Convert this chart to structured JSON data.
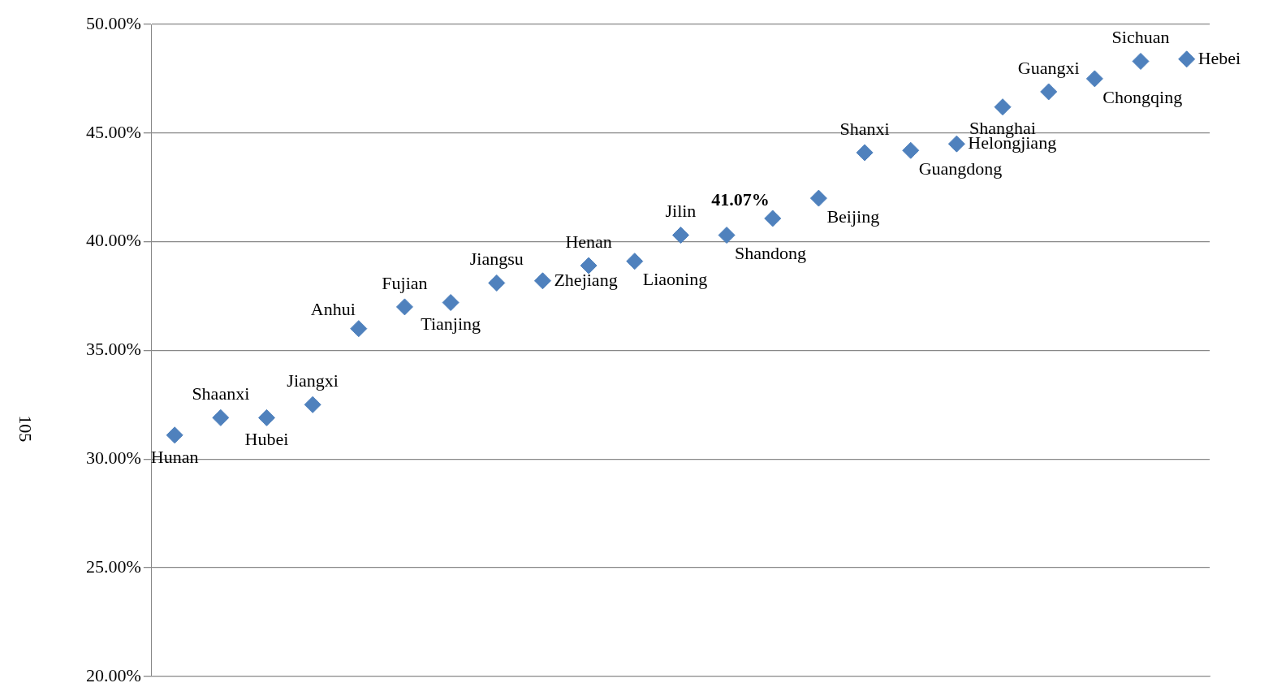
{
  "chart_data": {
    "type": "scatter",
    "categories": [
      null,
      null,
      null,
      null,
      null,
      null,
      null,
      null,
      null,
      null,
      null,
      null,
      null,
      null,
      null,
      null,
      null,
      null,
      null,
      null,
      null,
      null,
      null
    ],
    "series": [
      {
        "name": "Hunan",
        "color": "#4f81bd",
        "values": [
          31.1,
          null,
          null,
          null,
          null,
          null,
          null,
          null,
          null,
          null,
          null,
          null,
          null,
          null,
          null,
          null,
          null,
          null,
          null,
          null,
          null,
          null,
          null
        ]
      },
      {
        "name": "Shaanxi",
        "color": "#4f81bd",
        "values": [
          null,
          31.9,
          null,
          null,
          null,
          null,
          null,
          null,
          null,
          null,
          null,
          null,
          null,
          null,
          null,
          null,
          null,
          null,
          null,
          null,
          null,
          null,
          null
        ]
      },
      {
        "name": "Hubei",
        "color": "#4f81bd",
        "values": [
          null,
          null,
          31.9,
          null,
          null,
          null,
          null,
          null,
          null,
          null,
          null,
          null,
          null,
          null,
          null,
          null,
          null,
          null,
          null,
          null,
          null,
          null,
          null
        ]
      },
      {
        "name": "Jiangxi",
        "color": "#4f81bd",
        "values": [
          null,
          null,
          null,
          32.5,
          null,
          null,
          null,
          null,
          null,
          null,
          null,
          null,
          null,
          null,
          null,
          null,
          null,
          null,
          null,
          null,
          null,
          null,
          null
        ]
      },
      {
        "name": "Anhui",
        "color": "#4f81bd",
        "values": [
          null,
          null,
          null,
          null,
          36.0,
          null,
          null,
          null,
          null,
          null,
          null,
          null,
          null,
          null,
          null,
          null,
          null,
          null,
          null,
          null,
          null,
          null,
          null
        ]
      },
      {
        "name": "Fujian",
        "color": "#4f81bd",
        "values": [
          null,
          null,
          null,
          null,
          null,
          37.0,
          null,
          null,
          null,
          null,
          null,
          null,
          null,
          null,
          null,
          null,
          null,
          null,
          null,
          null,
          null,
          null,
          null
        ]
      },
      {
        "name": "Tianjing",
        "color": "#4f81bd",
        "values": [
          null,
          null,
          null,
          null,
          null,
          null,
          37.2,
          null,
          null,
          null,
          null,
          null,
          null,
          null,
          null,
          null,
          null,
          null,
          null,
          null,
          null,
          null,
          null
        ]
      },
      {
        "name": "Jiangsu",
        "color": "#4f81bd",
        "values": [
          null,
          null,
          null,
          null,
          null,
          null,
          null,
          38.1,
          null,
          null,
          null,
          null,
          null,
          null,
          null,
          null,
          null,
          null,
          null,
          null,
          null,
          null,
          null
        ]
      },
      {
        "name": "Zhejiang",
        "color": "#4f81bd",
        "values": [
          null,
          null,
          null,
          null,
          null,
          null,
          null,
          null,
          38.2,
          null,
          null,
          null,
          null,
          null,
          null,
          null,
          null,
          null,
          null,
          null,
          null,
          null,
          null
        ]
      },
      {
        "name": "Henan",
        "color": "#4f81bd",
        "values": [
          null,
          null,
          null,
          null,
          null,
          null,
          null,
          null,
          null,
          38.9,
          null,
          null,
          null,
          null,
          null,
          null,
          null,
          null,
          null,
          null,
          null,
          null,
          null
        ]
      },
      {
        "name": "Liaoning",
        "color": "#4f81bd",
        "values": [
          null,
          null,
          null,
          null,
          null,
          null,
          null,
          null,
          null,
          null,
          39.1,
          null,
          null,
          null,
          null,
          null,
          null,
          null,
          null,
          null,
          null,
          null,
          null
        ]
      },
      {
        "name": "Jilin",
        "color": "#4f81bd",
        "values": [
          null,
          null,
          null,
          null,
          null,
          null,
          null,
          null,
          null,
          null,
          null,
          40.3,
          null,
          null,
          null,
          null,
          null,
          null,
          null,
          null,
          null,
          null,
          null
        ]
      },
      {
        "name": "Shandong",
        "color": "#4f81bd",
        "values": [
          null,
          null,
          null,
          null,
          null,
          null,
          null,
          null,
          null,
          null,
          null,
          null,
          40.3,
          null,
          null,
          null,
          null,
          null,
          null,
          null,
          null,
          null,
          null
        ]
      },
      {
        "color": "#4f81bd",
        "values": [
          null,
          null,
          null,
          null,
          null,
          null,
          null,
          null,
          null,
          null,
          null,
          null,
          null,
          41.07,
          null,
          null,
          null,
          null,
          null,
          null,
          null,
          null,
          null
        ],
        "value_labels": [
          null,
          null,
          null,
          null,
          null,
          null,
          null,
          null,
          null,
          null,
          null,
          null,
          null,
          "41.07%",
          null,
          null,
          null,
          null,
          null,
          null,
          null,
          null,
          null
        ]
      },
      {
        "name": "Beijing",
        "color": "#4f81bd",
        "values": [
          null,
          null,
          null,
          null,
          null,
          null,
          null,
          null,
          null,
          null,
          null,
          null,
          null,
          null,
          42.0,
          null,
          null,
          null,
          null,
          null,
          null,
          null,
          null
        ]
      },
      {
        "name": "Shanxi",
        "color": "#4f81bd",
        "values": [
          null,
          null,
          null,
          null,
          null,
          null,
          null,
          null,
          null,
          null,
          null,
          null,
          null,
          null,
          null,
          44.1,
          null,
          null,
          null,
          null,
          null,
          null,
          null
        ]
      },
      {
        "name": "Guangdong",
        "color": "#4f81bd",
        "values": [
          null,
          null,
          null,
          null,
          null,
          null,
          null,
          null,
          null,
          null,
          null,
          null,
          null,
          null,
          null,
          null,
          44.2,
          null,
          null,
          null,
          null,
          null,
          null
        ]
      },
      {
        "name": "Helongjiang",
        "color": "#4f81bd",
        "values": [
          null,
          null,
          null,
          null,
          null,
          null,
          null,
          null,
          null,
          null,
          null,
          null,
          null,
          null,
          null,
          null,
          null,
          44.5,
          null,
          null,
          null,
          null,
          null
        ]
      },
      {
        "name": "Shanghai",
        "color": "#4f81bd",
        "values": [
          null,
          null,
          null,
          null,
          null,
          null,
          null,
          null,
          null,
          null,
          null,
          null,
          null,
          null,
          null,
          null,
          null,
          null,
          46.2,
          null,
          null,
          null,
          null
        ]
      },
      {
        "name": "Guangxi",
        "color": "#4f81bd",
        "values": [
          null,
          null,
          null,
          null,
          null,
          null,
          null,
          null,
          null,
          null,
          null,
          null,
          null,
          null,
          null,
          null,
          null,
          null,
          null,
          46.9,
          null,
          null,
          null
        ]
      },
      {
        "name": "Chongqing",
        "color": "#4f81bd",
        "values": [
          null,
          null,
          null,
          null,
          null,
          null,
          null,
          null,
          null,
          null,
          null,
          null,
          null,
          null,
          null,
          null,
          null,
          null,
          null,
          null,
          47.5,
          null,
          null
        ]
      },
      {
        "name": "Sichuan",
        "color": "#4f81bd",
        "values": [
          null,
          null,
          null,
          null,
          null,
          null,
          null,
          null,
          null,
          null,
          null,
          null,
          null,
          null,
          null,
          null,
          null,
          null,
          null,
          null,
          null,
          48.3,
          null
        ]
      },
      {
        "name": "Hebei",
        "color": "#4f81bd",
        "values": [
          null,
          null,
          null,
          null,
          null,
          null,
          null,
          null,
          null,
          null,
          null,
          null,
          null,
          null,
          null,
          null,
          null,
          null,
          null,
          null,
          null,
          null,
          48.4
        ]
      }
    ],
    "marker": "diamond",
    "grid": "y",
    "tick_labels": "y",
    "ylim": [
      20,
      50
    ],
    "yticks": [
      {
        "value": 20,
        "label": "20.00%"
      },
      {
        "value": 25,
        "label": "25.00%"
      },
      {
        "value": 30,
        "label": "30.00%"
      },
      {
        "value": 35,
        "label": "35.00%"
      },
      {
        "value": 40,
        "label": "40.00%"
      },
      {
        "value": 45,
        "label": "45.00%"
      },
      {
        "value": 50,
        "label": "50.00%"
      }
    ],
    "annotations": [
      "105"
    ]
  }
}
